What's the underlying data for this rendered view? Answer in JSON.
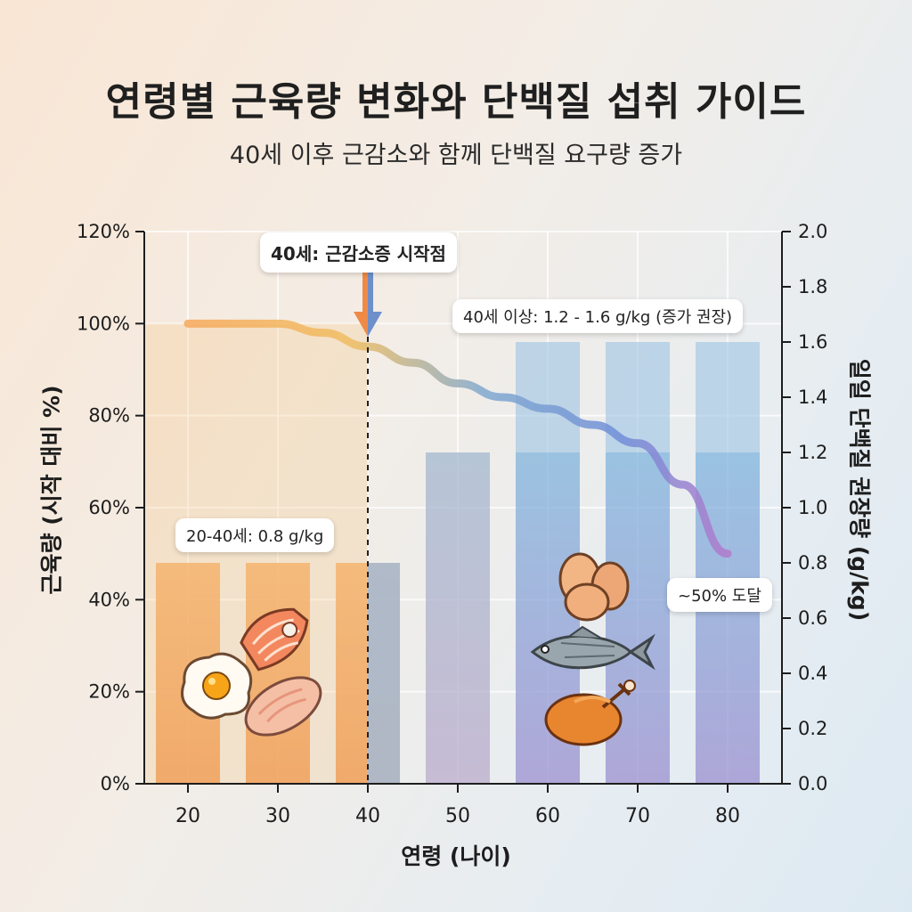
{
  "title": "연령별 근육량 변화와 단백질 섭취 가이드",
  "subtitle": "40세 이후 근감소와 함께 단백질 요구량 증가",
  "chart_data": {
    "type": "bar",
    "xlabel": "연령 (나이)",
    "ylabel_left": "근육량 (시작 대비 %)",
    "ylabel_right": "일일 단백질 권장량 (g/kg)",
    "x_ticks": [
      "20",
      "30",
      "40",
      "50",
      "60",
      "70",
      "80"
    ],
    "y_left_ticks": [
      "0%",
      "20%",
      "40%",
      "60%",
      "80%",
      "100%",
      "120%"
    ],
    "y_left_range": [
      0,
      120
    ],
    "y_right_ticks": [
      "0.0",
      "0.2",
      "0.4",
      "0.6",
      "0.8",
      "1.0",
      "1.2",
      "1.4",
      "1.6",
      "1.8",
      "2.0"
    ],
    "y_right_range": [
      0,
      2.0
    ],
    "protein_bars": {
      "ages": [
        20,
        30,
        40,
        50,
        60,
        70,
        80
      ],
      "min": [
        0.8,
        0.8,
        0.8,
        1.2,
        1.2,
        1.2,
        1.2
      ],
      "max": [
        0.8,
        0.8,
        0.8,
        1.2,
        1.6,
        1.6,
        1.6
      ]
    },
    "muscle_line": {
      "ages": [
        20,
        25,
        30,
        35,
        40,
        45,
        50,
        55,
        60,
        65,
        70,
        75,
        80
      ],
      "values": [
        100,
        100,
        100,
        98,
        95,
        91.5,
        87,
        84,
        81.5,
        78,
        74,
        65,
        50
      ]
    },
    "grid": true,
    "marker_age": 40,
    "annotations": {
      "onset": "40세: 근감소증 시작점",
      "young": "20-40세: 0.8 g/kg",
      "older": "40세 이상: 1.2 - 1.6 g/kg (증가 권장)",
      "end": "~50% 도달"
    },
    "colors": {
      "young_bar": "#f2a860",
      "old_bar_top": "#7fb3dd",
      "old_bar_bottom": "#9b8fcf",
      "line_start": "#f5b14e",
      "line_end": "#a877c9",
      "arrow": "#e98f48"
    },
    "icons": [
      "salmon-icon",
      "fried-egg-icon",
      "chicken-breast-icon",
      "eggs-icon",
      "fish-icon",
      "roast-chicken-icon"
    ]
  }
}
